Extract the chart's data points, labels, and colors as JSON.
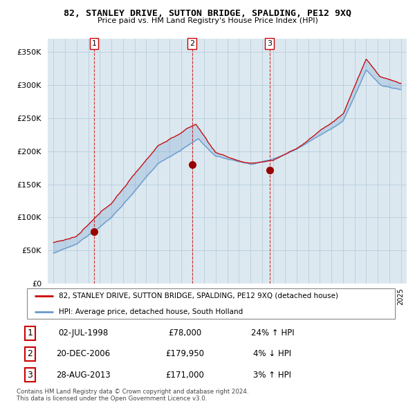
{
  "title": "82, STANLEY DRIVE, SUTTON BRIDGE, SPALDING, PE12 9XQ",
  "subtitle": "Price paid vs. HM Land Registry's House Price Index (HPI)",
  "legend_line1": "82, STANLEY DRIVE, SUTTON BRIDGE, SPALDING, PE12 9XQ (detached house)",
  "legend_line2": "HPI: Average price, detached house, South Holland",
  "table_rows": [
    {
      "num": "1",
      "date": "02-JUL-1998",
      "price": "£78,000",
      "hpi": "24% ↑ HPI"
    },
    {
      "num": "2",
      "date": "20-DEC-2006",
      "price": "£179,950",
      "hpi": "4% ↓ HPI"
    },
    {
      "num": "3",
      "date": "28-AUG-2013",
      "price": "£171,000",
      "hpi": "3% ↑ HPI"
    }
  ],
  "footnote1": "Contains HM Land Registry data © Crown copyright and database right 2024.",
  "footnote2": "This data is licensed under the Open Government Licence v3.0.",
  "sale_dates": [
    1998.5,
    2006.97,
    2013.66
  ],
  "sale_prices": [
    78000,
    179950,
    171000
  ],
  "sale_numbers": [
    "1",
    "2",
    "3"
  ],
  "red_line_color": "#cc0000",
  "blue_line_color": "#6699cc",
  "chart_bg_color": "#dce8f0",
  "background_color": "#ffffff",
  "grid_color": "#b0c8d8",
  "sale_marker_color": "#990000",
  "ylim": [
    0,
    370000
  ],
  "xlim_start": 1994.5,
  "xlim_end": 2025.5,
  "yticks": [
    0,
    50000,
    100000,
    150000,
    200000,
    250000,
    300000,
    350000
  ]
}
